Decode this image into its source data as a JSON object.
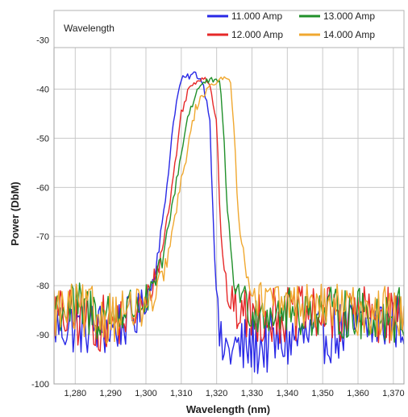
{
  "chart_data": {
    "type": "line",
    "title": "",
    "legend_title": "Wavelength",
    "legend_position": "top",
    "xlabel": "Wavelength (nm)",
    "ylabel": "Power (DbM)",
    "xlim": [
      1274,
      1373
    ],
    "ylim": [
      -100,
      -24
    ],
    "x_ticks": [
      1280,
      1290,
      1300,
      1310,
      1320,
      1330,
      1340,
      1350,
      1360,
      1370
    ],
    "x_tick_labels": [
      "1,280",
      "1,290",
      "1,300",
      "1,310",
      "1,320",
      "1,330",
      "1,340",
      "1,350",
      "1,360",
      "1,370"
    ],
    "y_ticks": [
      -30,
      -40,
      -50,
      -60,
      -70,
      -80,
      -90,
      -100
    ],
    "y_tick_labels": [
      "-30",
      "-40",
      "-50",
      "-60",
      "-70",
      "-80",
      "-90",
      "-100"
    ],
    "grid": true,
    "series": [
      {
        "name": "11.000 Amp",
        "color": "#2828e6",
        "x": [
          1274,
          1290,
          1298,
          1302,
          1305,
          1308,
          1310,
          1312,
          1314,
          1316,
          1318,
          1319,
          1320,
          1321,
          1326,
          1373
        ],
        "y": [
          -88,
          -89,
          -86,
          -79,
          -66,
          -45,
          -38,
          -37.5,
          -36.8,
          -38.5,
          -45,
          -65,
          -82,
          -93,
          -93,
          -87
        ],
        "noise": [
          4.5,
          4.5,
          3.5,
          1.5,
          1,
          0.8,
          0.5,
          0.5,
          0.5,
          0.5,
          0.8,
          1,
          2,
          4.5,
          5,
          4.5
        ]
      },
      {
        "name": "12.000 Amp",
        "color": "#e62828",
        "x": [
          1274,
          1290,
          1300,
          1304,
          1307,
          1310,
          1312,
          1314,
          1316,
          1318,
          1320,
          1321,
          1322,
          1324,
          1328,
          1373
        ],
        "y": [
          -86,
          -88,
          -84,
          -75,
          -62,
          -45,
          -40,
          -38.5,
          -37.5,
          -38.5,
          -47,
          -66,
          -78,
          -84,
          -86,
          -86
        ],
        "noise": [
          4.5,
          4.5,
          3,
          1.2,
          1,
          0.8,
          0.5,
          0.5,
          0.5,
          0.5,
          0.8,
          1,
          1.5,
          3,
          4.5,
          4.5
        ]
      },
      {
        "name": "13.000 Amp",
        "color": "#20902a",
        "x": [
          1274,
          1290,
          1301,
          1305,
          1309,
          1312,
          1315,
          1317,
          1319,
          1321,
          1322,
          1323,
          1325,
          1330,
          1373
        ],
        "y": [
          -84,
          -86,
          -83,
          -74,
          -57,
          -45,
          -39.5,
          -38.5,
          -38.2,
          -39,
          -48,
          -65,
          -80,
          -85,
          -86
        ],
        "noise": [
          4.5,
          4.5,
          2.5,
          1.2,
          1,
          0.8,
          0.5,
          0.5,
          0.5,
          0.5,
          0.8,
          1,
          1.5,
          3.5,
          4.5
        ]
      },
      {
        "name": "14.000 Amp",
        "color": "#f0a830",
        "x": [
          1274,
          1290,
          1302,
          1306,
          1311,
          1314,
          1318,
          1321,
          1323,
          1324,
          1325,
          1326,
          1328,
          1332,
          1373
        ],
        "y": [
          -85,
          -86,
          -84,
          -75,
          -55,
          -44,
          -39,
          -38.3,
          -37.6,
          -39,
          -48,
          -64,
          -77,
          -83,
          -86
        ],
        "noise": [
          4.5,
          4.5,
          2.5,
          1.2,
          1,
          0.8,
          0.5,
          0.5,
          0.5,
          0.5,
          0.8,
          1,
          1.5,
          3,
          4.5
        ]
      }
    ]
  }
}
